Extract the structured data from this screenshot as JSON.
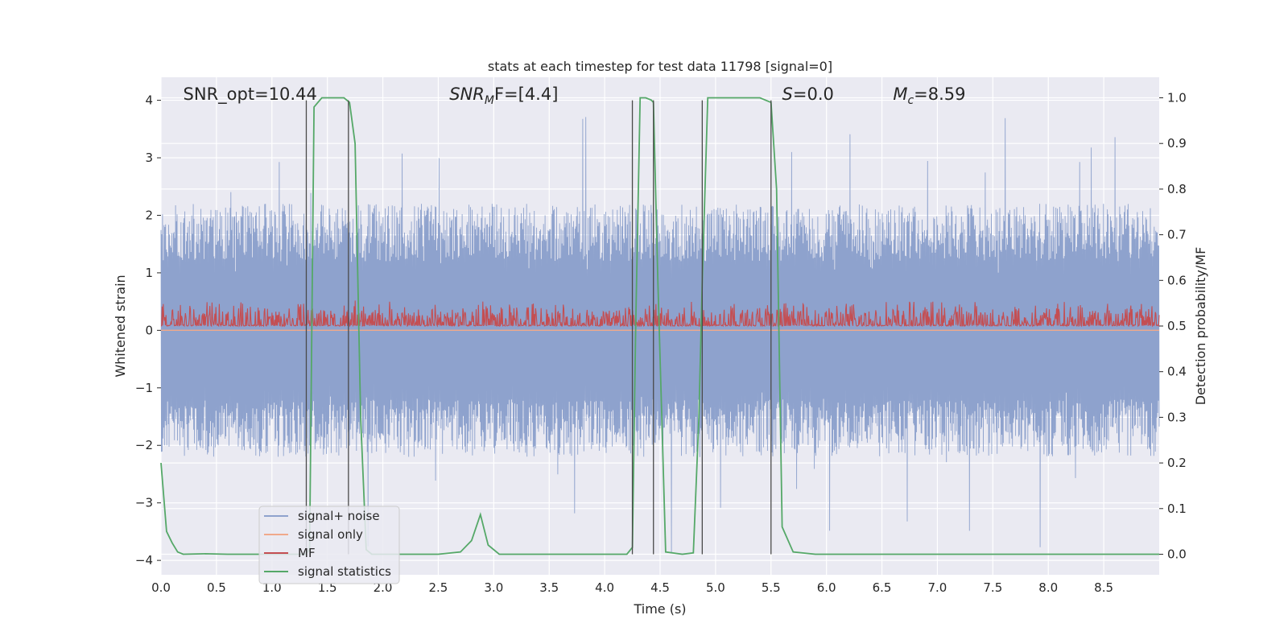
{
  "chart_data": {
    "type": "line",
    "title": "stats at each timestep for test data 11798 [signal=0]",
    "xlabel": "Time (s)",
    "ylabel": "Whitened strain",
    "y2label": "Detection probability/MF",
    "xlim": [
      0,
      9.0
    ],
    "ylim": [
      -4.25,
      4.4
    ],
    "y2lim": [
      -0.045,
      1.045
    ],
    "xticks": [
      "0.0",
      "0.5",
      "1.0",
      "1.5",
      "2.0",
      "2.5",
      "3.0",
      "3.5",
      "4.0",
      "4.5",
      "5.0",
      "5.5",
      "6.0",
      "6.5",
      "7.0",
      "7.5",
      "8.0",
      "8.5"
    ],
    "yticks": [
      "−4",
      "−3",
      "−2",
      "−1",
      "0",
      "1",
      "2",
      "3",
      "4"
    ],
    "y2ticks": [
      "0.0",
      "0.1",
      "0.2",
      "0.3",
      "0.4",
      "0.5",
      "0.6",
      "0.7",
      "0.8",
      "0.9",
      "1.0"
    ],
    "grid": true,
    "legend_placement": "lower-left",
    "annotations": [
      {
        "text": "SNR_opt=10.44",
        "x": 0.2
      },
      {
        "text": "SNR",
        "sub": "M",
        "rest": "F=[4.4]",
        "x": 2.6
      },
      {
        "text": "S",
        "rest": "=0.0",
        "x": 5.6
      },
      {
        "text": "M",
        "sub": "c",
        "rest": "=8.59",
        "x": 6.6
      }
    ],
    "vlines": [
      1.31,
      1.69,
      4.25,
      4.44,
      4.88,
      5.5
    ],
    "series": [
      {
        "name": "signal+ noise",
        "color": "#8ea2cd",
        "kind": "noise",
        "envelope": 2.0,
        "peak": 3.9
      },
      {
        "name": "signal only",
        "color": "#f0a98b",
        "kind": "flat",
        "value": 0
      },
      {
        "name": "MF",
        "color": "#c44e52",
        "kind": "mf",
        "axis": "y2",
        "base": 0.5,
        "amp": 0.05
      },
      {
        "name": "signal statistics",
        "color": "#55a868",
        "kind": "line",
        "axis": "y2",
        "x": [
          0.0,
          0.05,
          0.1,
          0.15,
          0.2,
          0.4,
          0.6,
          0.8,
          1.0,
          1.2,
          1.3,
          1.34,
          1.38,
          1.45,
          1.55,
          1.65,
          1.7,
          1.75,
          1.8,
          1.85,
          1.9,
          2.0,
          2.2,
          2.5,
          2.7,
          2.8,
          2.88,
          2.95,
          3.05,
          3.2,
          3.6,
          4.0,
          4.2,
          4.25,
          4.28,
          4.32,
          4.37,
          4.42,
          4.44,
          4.48,
          4.55,
          4.7,
          4.8,
          4.85,
          4.88,
          4.93,
          5.0,
          5.2,
          5.4,
          5.5,
          5.55,
          5.6,
          5.7,
          5.9,
          6.2,
          7.0,
          8.0,
          9.0
        ],
        "y": [
          0.2,
          0.05,
          0.025,
          0.005,
          0.0,
          0.001,
          0.0,
          0.0,
          0.0,
          0.0,
          0.0,
          0.01,
          0.98,
          1.0,
          1.0,
          1.0,
          0.99,
          0.9,
          0.3,
          0.01,
          0.0,
          0.0,
          0.0,
          0.0,
          0.005,
          0.03,
          0.087,
          0.02,
          0.0,
          0.0,
          0.0,
          0.0,
          0.0,
          0.015,
          0.5,
          1.0,
          1.0,
          0.995,
          0.99,
          0.6,
          0.005,
          0.0,
          0.003,
          0.3,
          0.6,
          1.0,
          1.0,
          1.0,
          1.0,
          0.99,
          0.8,
          0.06,
          0.005,
          0.0,
          0.0,
          0.0,
          0.0,
          0.0
        ]
      }
    ]
  }
}
